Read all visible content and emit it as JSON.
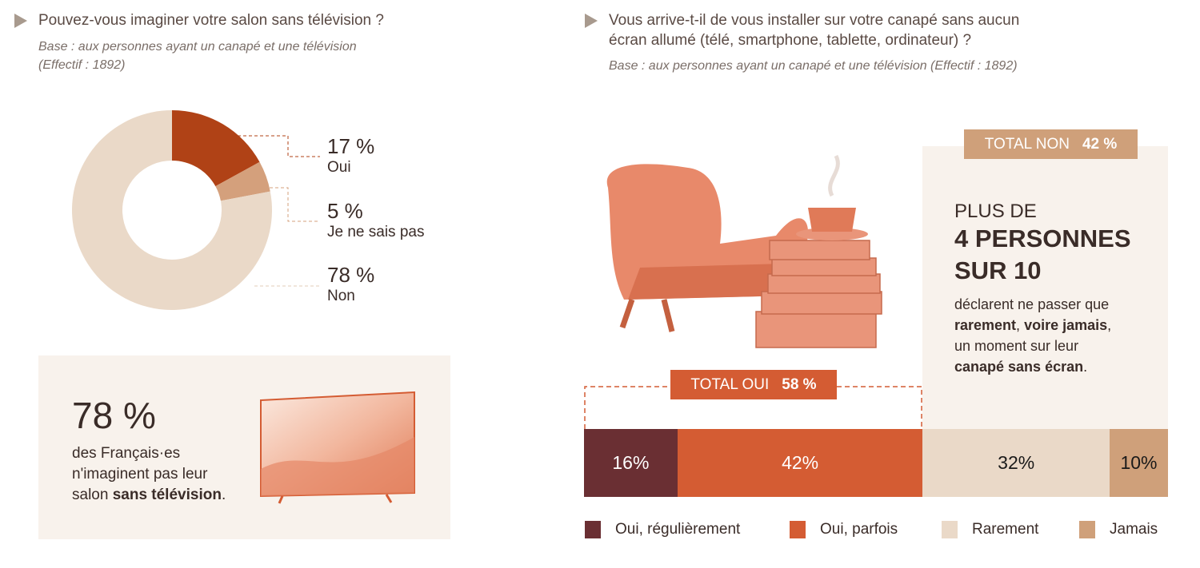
{
  "left": {
    "question": "Pouvez-vous imaginer votre salon sans télévision ?",
    "base_line1": "Base : aux personnes ayant un canapé et une télévision",
    "base_line2": "(Effectif : 1892)",
    "callout": {
      "value": "78 %",
      "line1": "des Français·es",
      "line2": "n'imaginent pas leur",
      "line3_pre": "salon ",
      "line3_bold": "sans télévision",
      "line3_post": "."
    }
  },
  "right": {
    "question_line1": "Vous arrive-t-il de vous installer sur votre canapé sans aucun",
    "question_line2": "écran allumé (télé, smartphone, tablette, ordinateur) ?",
    "base": "Base : aux personnes ayant un canapé et une télévision (Effectif : 1892)",
    "total_non_label": "TOTAL NON",
    "total_non_value": "42 %",
    "total_oui_label": "TOTAL OUI",
    "total_oui_value": "58 %",
    "panel": {
      "line1": "PLUS DE",
      "line2": "4 PERSONNES",
      "line3": "SUR 10",
      "t1": "déclarent ne passer que",
      "b1": "rarement",
      "t2": ", ",
      "b2": "voire jamais",
      ",": ",",
      "t3": ",",
      "t4": "un moment sur leur",
      "b3": "canapé sans écran",
      "t5": "."
    }
  },
  "chart_data": [
    {
      "type": "pie",
      "title": "Pouvez-vous imaginer votre salon sans télévision ?",
      "slices": [
        {
          "label": "Oui",
          "value": 17,
          "display": "17 %",
          "color": "#b04216"
        },
        {
          "label": "Je ne sais pas",
          "value": 5,
          "display": "5 %",
          "color": "#d4a07c"
        },
        {
          "label": "Non",
          "value": 78,
          "display": "78 %",
          "color": "#ead9c8"
        }
      ]
    },
    {
      "type": "bar",
      "orientation": "horizontal-stacked",
      "title": "Vous arrive-t-il de vous installer sur votre canapé sans aucun écran allumé ?",
      "series": [
        {
          "name": "Oui, régulièrement",
          "value": 16,
          "display": "16%",
          "color": "#6a2f33",
          "text": "#ffffff"
        },
        {
          "name": "Oui, parfois",
          "value": 42,
          "display": "42%",
          "color": "#d45c33",
          "text": "#ffffff"
        },
        {
          "name": "Rarement",
          "value": 32,
          "display": "32%",
          "color": "#ead9c8",
          "text": "#1a1a1a"
        },
        {
          "name": "Jamais",
          "value": 10,
          "display": "10%",
          "color": "#cfa07a",
          "text": "#1a1a1a"
        }
      ],
      "xlim": [
        0,
        100
      ]
    }
  ]
}
